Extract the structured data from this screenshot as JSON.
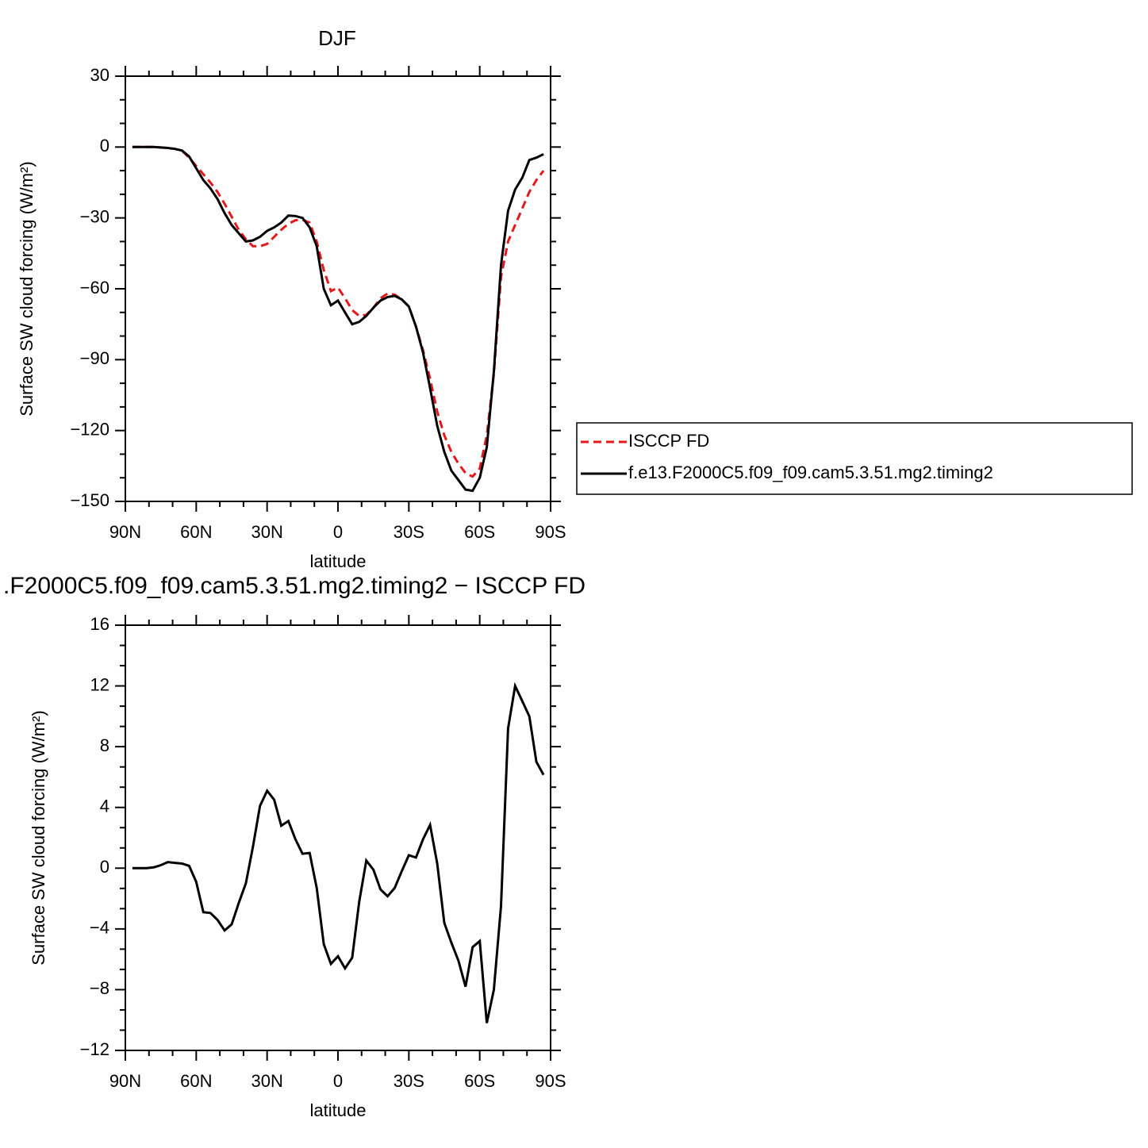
{
  "chart_data": [
    {
      "type": "line",
      "title": "DJF",
      "ylabel": "Surface SW cloud forcing (W/m²)",
      "xlabel": "latitude",
      "x": [
        87,
        84,
        81,
        78,
        75,
        72,
        69,
        66,
        63,
        60,
        57,
        54,
        51,
        48,
        45,
        42,
        39,
        36,
        33,
        30,
        27,
        24,
        21,
        18,
        15,
        12,
        9,
        6,
        3,
        0,
        -3,
        -6,
        -9,
        -12,
        -15,
        -18,
        -21,
        -24,
        -27,
        -30,
        -33,
        -36,
        -39,
        -42,
        -45,
        -48,
        -51,
        -54,
        -57,
        -60,
        -63,
        -66,
        -69,
        -72,
        -75,
        -78,
        -81,
        -84,
        -87
      ],
      "xlim": [
        90,
        -90
      ],
      "xticks": [
        {
          "value": 90,
          "label": "90N"
        },
        {
          "value": 60,
          "label": "60N"
        },
        {
          "value": 30,
          "label": "30N"
        },
        0,
        {
          "value": -30,
          "label": "30S"
        },
        {
          "value": -60,
          "label": "60S"
        },
        {
          "value": -90,
          "label": "90S"
        }
      ],
      "ylim": [
        30,
        -150
      ],
      "yticks": [
        30,
        0,
        {
          "value": -30,
          "label": "−30"
        },
        {
          "value": -60,
          "label": "−60"
        },
        {
          "value": -90,
          "label": "−90"
        },
        {
          "value": -120,
          "label": "−120"
        },
        {
          "value": -150,
          "label": "−150"
        }
      ],
      "legend": "outside-right",
      "series": [
        {
          "name": "ISCCP FD",
          "color": "#e31a1c",
          "linestyle": "dashed",
          "values": [
            0,
            0,
            0,
            0,
            -0.2,
            -0.4,
            -0.8,
            -1.6,
            -4.5,
            -8,
            -11.5,
            -15,
            -19,
            -24,
            -29.5,
            -35,
            -39,
            -42,
            -42,
            -41,
            -38,
            -35,
            -32.5,
            -31,
            -30.8,
            -32,
            -40,
            -52,
            -61,
            -59.5,
            -64,
            -69,
            -71.5,
            -71,
            -68,
            -64,
            -62,
            -62.5,
            -64.5,
            -67.5,
            -76,
            -86,
            -98,
            -112,
            -122,
            -129,
            -134,
            -138,
            -139.5,
            -136,
            -122,
            -96,
            -55,
            -40,
            -33,
            -26,
            -19,
            -14,
            -10
          ]
        },
        {
          "name": "f.e13.F2000C5.f09_f09.cam5.3.51.mg2.timing2",
          "color": "#000000",
          "linestyle": "solid",
          "values": [
            0,
            0,
            0,
            0,
            -0.2,
            -0.4,
            -0.8,
            -1.5,
            -4,
            -9,
            -14,
            -17.5,
            -22,
            -28,
            -33,
            -36.5,
            -40,
            -39.5,
            -38,
            -35.5,
            -34,
            -32,
            -29,
            -29.2,
            -30,
            -34,
            -42,
            -60,
            -67,
            -65,
            -70,
            -75,
            -74,
            -71.5,
            -68,
            -65,
            -63.5,
            -63,
            -64.5,
            -67.5,
            -76,
            -87,
            -102,
            -118,
            -129,
            -137,
            -141,
            -145,
            -145.5,
            -140,
            -127,
            -95,
            -50,
            -27,
            -18,
            -13,
            -5.5,
            -4.5,
            -3
          ]
        }
      ]
    },
    {
      "type": "line",
      "title": ".F2000C5.f09_f09.cam5.3.51.mg2.timing2 − ISCCP FD",
      "ylabel": "Surface SW cloud forcing (W/m²)",
      "xlabel": "latitude",
      "x": [
        87,
        84,
        81,
        78,
        75,
        72,
        69,
        66,
        63,
        60,
        57,
        54,
        51,
        48,
        45,
        42,
        39,
        36,
        33,
        30,
        27,
        24,
        21,
        18,
        15,
        12,
        9,
        6,
        3,
        0,
        -3,
        -6,
        -9,
        -12,
        -15,
        -18,
        -21,
        -24,
        -27,
        -30,
        -33,
        -36,
        -39,
        -42,
        -45,
        -48,
        -51,
        -54,
        -57,
        -60,
        -63,
        -66,
        -69,
        -72,
        -75,
        -78,
        -81,
        -84,
        -87
      ],
      "xlim": [
        90,
        -90
      ],
      "xticks": [
        {
          "value": 90,
          "label": "90N"
        },
        {
          "value": 60,
          "label": "60N"
        },
        {
          "value": 30,
          "label": "30N"
        },
        0,
        {
          "value": -30,
          "label": "30S"
        },
        {
          "value": -60,
          "label": "60S"
        },
        {
          "value": -90,
          "label": "90S"
        }
      ],
      "ylim": [
        16,
        -12
      ],
      "yticks": [
        16,
        12,
        8,
        4,
        0,
        {
          "value": -4,
          "label": "−4"
        },
        {
          "value": -8,
          "label": "−8"
        },
        {
          "value": -12,
          "label": "−12"
        }
      ],
      "color": "#000000",
      "values": [
        0,
        0,
        0,
        0.05,
        0.2,
        0.4,
        0.35,
        0.3,
        0.15,
        -0.9,
        -2.9,
        -2.95,
        -3.4,
        -4.1,
        -3.7,
        -2.3,
        -1.0,
        1.4,
        4.1,
        5.1,
        4.5,
        2.8,
        3.1,
        1.9,
        0.95,
        1.0,
        -1.3,
        -5.0,
        -6.3,
        -5.8,
        -6.6,
        -5.9,
        -2.2,
        0.5,
        -0.1,
        -1.4,
        -1.85,
        -1.3,
        -0.2,
        0.85,
        0.7,
        1.9,
        2.85,
        0.3,
        -3.6,
        -4.9,
        -6.1,
        -7.8,
        -5.2,
        -4.8,
        -10.2,
        -8.0,
        -2.5,
        9.2,
        12.0,
        11.0,
        10.0,
        7.0,
        6.15
      ]
    }
  ]
}
